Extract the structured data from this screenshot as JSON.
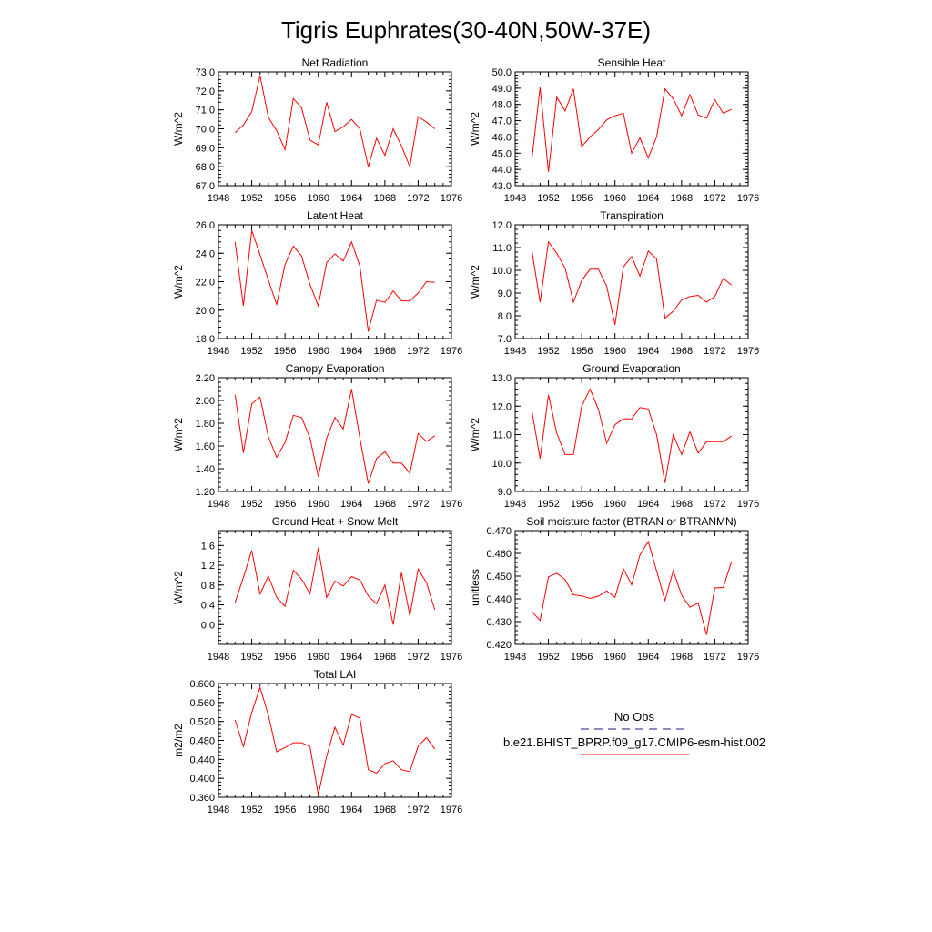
{
  "figure": {
    "title": "Tigris Euphrates(30-40N,50W-37E)",
    "line_color": "#ff0000",
    "obs_color": "#1a1a80"
  },
  "legend": {
    "obs_label": "No Obs",
    "model_label": "b.e21.BHIST_BPRP.f09_g17.CMIP6-esm-hist.002"
  },
  "chart_data": [
    {
      "type": "line",
      "title": "Net Radiation",
      "ylabel": "W/m^2",
      "xlim": [
        1948,
        1976
      ],
      "xticks": [
        1948,
        1952,
        1956,
        1960,
        1964,
        1968,
        1972,
        1976
      ],
      "ylim": [
        67.0,
        73.0
      ],
      "yticks": [
        67.0,
        68.0,
        69.0,
        70.0,
        71.0,
        72.0,
        73.0
      ],
      "ytick_labels": [
        "67.0",
        "68.0",
        "69.0",
        "70.0",
        "71.0",
        "72.0",
        "73.0"
      ],
      "series": [
        {
          "x": [
            1950,
            1951,
            1952,
            1953,
            1954,
            1955,
            1956,
            1957,
            1958,
            1959,
            1960,
            1961,
            1962,
            1963,
            1964,
            1965,
            1966,
            1967,
            1968,
            1969,
            1970,
            1971,
            1972,
            1973,
            1974
          ],
          "values": [
            69.8,
            70.2,
            70.9,
            72.8,
            70.6,
            69.9,
            68.9,
            71.6,
            71.1,
            69.4,
            69.15,
            71.4,
            69.85,
            70.1,
            70.5,
            70.0,
            68.0,
            69.5,
            68.6,
            70.0,
            69.1,
            68.0,
            70.65,
            70.35,
            70.0
          ]
        }
      ]
    },
    {
      "type": "line",
      "title": "Sensible Heat",
      "ylabel": "W/m^2",
      "xlim": [
        1948,
        1976
      ],
      "xticks": [
        1948,
        1952,
        1956,
        1960,
        1964,
        1968,
        1972,
        1976
      ],
      "ylim": [
        43.0,
        50.0
      ],
      "yticks": [
        43.0,
        44.0,
        45.0,
        46.0,
        47.0,
        48.0,
        49.0,
        50.0
      ],
      "ytick_labels": [
        "43.0",
        "44.0",
        "45.0",
        "46.0",
        "47.0",
        "48.0",
        "49.0",
        "50.0"
      ],
      "series": [
        {
          "x": [
            1950,
            1951,
            1952,
            1953,
            1954,
            1955,
            1956,
            1957,
            1958,
            1959,
            1960,
            1961,
            1962,
            1963,
            1964,
            1965,
            1966,
            1967,
            1968,
            1969,
            1970,
            1971,
            1972,
            1973,
            1974
          ],
          "values": [
            44.6,
            49.05,
            43.85,
            48.45,
            47.6,
            48.95,
            45.4,
            46.0,
            46.45,
            47.05,
            47.3,
            47.45,
            45.0,
            45.95,
            44.7,
            46.0,
            48.95,
            48.35,
            47.3,
            48.6,
            47.35,
            47.15,
            48.3,
            47.45,
            47.7
          ]
        }
      ]
    },
    {
      "type": "line",
      "title": "Latent Heat",
      "ylabel": "W/m^2",
      "xlim": [
        1948,
        1976
      ],
      "xticks": [
        1948,
        1952,
        1956,
        1960,
        1964,
        1968,
        1972,
        1976
      ],
      "ylim": [
        18.0,
        26.0
      ],
      "yticks": [
        18.0,
        20.0,
        22.0,
        24.0,
        26.0
      ],
      "ytick_labels": [
        "18.0",
        "20.0",
        "22.0",
        "24.0",
        "26.0"
      ],
      "series": [
        {
          "x": [
            1950,
            1951,
            1952,
            1953,
            1954,
            1955,
            1956,
            1957,
            1958,
            1959,
            1960,
            1961,
            1962,
            1963,
            1964,
            1965,
            1966,
            1967,
            1968,
            1969,
            1970,
            1971,
            1972,
            1973,
            1974
          ],
          "values": [
            24.8,
            20.3,
            25.6,
            23.9,
            22.1,
            20.4,
            23.2,
            24.5,
            23.8,
            21.8,
            20.3,
            23.35,
            23.95,
            23.45,
            24.8,
            23.1,
            18.5,
            20.7,
            20.55,
            21.35,
            20.65,
            20.65,
            21.2,
            22.0,
            21.95
          ]
        }
      ]
    },
    {
      "type": "line",
      "title": "Transpiration",
      "ylabel": "W/m^2",
      "xlim": [
        1948,
        1976
      ],
      "xticks": [
        1948,
        1952,
        1956,
        1960,
        1964,
        1968,
        1972,
        1976
      ],
      "ylim": [
        7.0,
        12.0
      ],
      "yticks": [
        7.0,
        8.0,
        9.0,
        10.0,
        11.0,
        12.0
      ],
      "ytick_labels": [
        "7.0",
        "8.0",
        "9.0",
        "10.0",
        "11.0",
        "12.0"
      ],
      "series": [
        {
          "x": [
            1950,
            1951,
            1952,
            1953,
            1954,
            1955,
            1956,
            1957,
            1958,
            1959,
            1960,
            1961,
            1962,
            1963,
            1964,
            1965,
            1966,
            1967,
            1968,
            1969,
            1970,
            1971,
            1972,
            1973,
            1974
          ],
          "values": [
            10.9,
            8.6,
            11.25,
            10.75,
            10.1,
            8.6,
            9.55,
            10.05,
            10.05,
            9.3,
            7.6,
            10.15,
            10.6,
            9.75,
            10.85,
            10.5,
            7.9,
            8.2,
            8.7,
            8.85,
            8.9,
            8.6,
            8.85,
            9.65,
            9.35
          ]
        }
      ]
    },
    {
      "type": "line",
      "title": "Canopy Evaporation",
      "ylabel": "W/m^2",
      "xlim": [
        1948,
        1976
      ],
      "xticks": [
        1948,
        1952,
        1956,
        1960,
        1964,
        1968,
        1972,
        1976
      ],
      "ylim": [
        1.2,
        2.2
      ],
      "yticks": [
        1.2,
        1.4,
        1.6,
        1.8,
        2.0,
        2.2
      ],
      "ytick_labels": [
        "1.20",
        "1.40",
        "1.60",
        "1.80",
        "2.00",
        "2.20"
      ],
      "series": [
        {
          "x": [
            1950,
            1951,
            1952,
            1953,
            1954,
            1955,
            1956,
            1957,
            1958,
            1959,
            1960,
            1961,
            1962,
            1963,
            1964,
            1965,
            1966,
            1967,
            1968,
            1969,
            1970,
            1971,
            1972,
            1973,
            1974
          ],
          "values": [
            2.05,
            1.54,
            1.97,
            2.03,
            1.68,
            1.5,
            1.63,
            1.87,
            1.85,
            1.67,
            1.33,
            1.67,
            1.85,
            1.75,
            2.1,
            1.67,
            1.27,
            1.49,
            1.55,
            1.45,
            1.45,
            1.36,
            1.71,
            1.64,
            1.69
          ]
        }
      ]
    },
    {
      "type": "line",
      "title": "Ground Evaporation",
      "ylabel": "W/m^2",
      "xlim": [
        1948,
        1976
      ],
      "xticks": [
        1948,
        1952,
        1956,
        1960,
        1964,
        1968,
        1972,
        1976
      ],
      "ylim": [
        9.0,
        13.0
      ],
      "yticks": [
        9.0,
        10.0,
        11.0,
        12.0,
        13.0
      ],
      "ytick_labels": [
        "9.0",
        "10.0",
        "11.0",
        "12.0",
        "13.0"
      ],
      "series": [
        {
          "x": [
            1950,
            1951,
            1952,
            1953,
            1954,
            1955,
            1956,
            1957,
            1958,
            1959,
            1960,
            1961,
            1962,
            1963,
            1964,
            1965,
            1966,
            1967,
            1968,
            1969,
            1970,
            1971,
            1972,
            1973,
            1974
          ],
          "values": [
            11.85,
            10.15,
            12.4,
            11.05,
            10.3,
            10.3,
            12.0,
            12.6,
            11.9,
            10.7,
            11.35,
            11.55,
            11.55,
            11.95,
            11.9,
            11.0,
            9.3,
            11.0,
            10.3,
            11.1,
            10.35,
            10.75,
            10.75,
            10.75,
            10.95
          ]
        }
      ]
    },
    {
      "type": "line",
      "title": "Ground Heat + Snow Melt",
      "ylabel": "W/m^2",
      "xlim": [
        1948,
        1976
      ],
      "xticks": [
        1948,
        1952,
        1956,
        1960,
        1964,
        1968,
        1972,
        1976
      ],
      "ylim": [
        -0.4,
        1.9
      ],
      "yticks": [
        0.0,
        0.4,
        0.8,
        1.2,
        1.6
      ],
      "ytick_labels": [
        "0.0",
        "0.4",
        "0.8",
        "1.2",
        "1.6"
      ],
      "series": [
        {
          "x": [
            1950,
            1951,
            1952,
            1953,
            1954,
            1955,
            1956,
            1957,
            1958,
            1959,
            1960,
            1961,
            1962,
            1963,
            1964,
            1965,
            1966,
            1967,
            1968,
            1969,
            1970,
            1971,
            1972,
            1973,
            1974
          ],
          "values": [
            0.45,
            0.95,
            1.5,
            0.62,
            0.98,
            0.55,
            0.37,
            1.1,
            0.92,
            0.62,
            1.55,
            0.55,
            0.88,
            0.78,
            0.97,
            0.9,
            0.58,
            0.42,
            0.8,
            0.0,
            1.05,
            0.18,
            1.12,
            0.85,
            0.3
          ]
        }
      ]
    },
    {
      "type": "line",
      "title": "Soil moisture factor (BTRAN or BTRANMN)",
      "ylabel": "unitless",
      "xlim": [
        1948,
        1976
      ],
      "xticks": [
        1948,
        1952,
        1956,
        1960,
        1964,
        1968,
        1972,
        1976
      ],
      "ylim": [
        0.42,
        0.47
      ],
      "yticks": [
        0.42,
        0.43,
        0.44,
        0.45,
        0.46,
        0.47
      ],
      "ytick_labels": [
        "0.420",
        "0.430",
        "0.440",
        "0.450",
        "0.460",
        "0.470"
      ],
      "series": [
        {
          "x": [
            1950,
            1951,
            1952,
            1953,
            1954,
            1955,
            1956,
            1957,
            1958,
            1959,
            1960,
            1961,
            1962,
            1963,
            1964,
            1965,
            1966,
            1967,
            1968,
            1969,
            1970,
            1971,
            1972,
            1973,
            1974
          ],
          "values": [
            0.4345,
            0.4305,
            0.4497,
            0.4513,
            0.4485,
            0.4418,
            0.4413,
            0.4402,
            0.4412,
            0.4435,
            0.4407,
            0.4533,
            0.4462,
            0.4593,
            0.4652,
            0.4523,
            0.4393,
            0.4524,
            0.4417,
            0.4363,
            0.4382,
            0.4242,
            0.4448,
            0.445,
            0.4563
          ]
        }
      ]
    },
    {
      "type": "line",
      "title": "Total LAI",
      "ylabel": "m2/m2",
      "xlim": [
        1948,
        1976
      ],
      "xticks": [
        1948,
        1952,
        1956,
        1960,
        1964,
        1968,
        1972,
        1976
      ],
      "ylim": [
        0.36,
        0.6
      ],
      "yticks": [
        0.36,
        0.4,
        0.44,
        0.48,
        0.52,
        0.56,
        0.6
      ],
      "ytick_labels": [
        "0.360",
        "0.400",
        "0.440",
        "0.480",
        "0.520",
        "0.560",
        "0.600"
      ],
      "series": [
        {
          "x": [
            1950,
            1951,
            1952,
            1953,
            1954,
            1955,
            1956,
            1957,
            1958,
            1959,
            1960,
            1961,
            1962,
            1963,
            1964,
            1965,
            1966,
            1967,
            1968,
            1969,
            1970,
            1971,
            1972,
            1973,
            1974
          ],
          "values": [
            0.523,
            0.467,
            0.539,
            0.592,
            0.533,
            0.456,
            0.465,
            0.475,
            0.475,
            0.467,
            0.365,
            0.447,
            0.508,
            0.47,
            0.535,
            0.527,
            0.418,
            0.411,
            0.431,
            0.437,
            0.418,
            0.414,
            0.468,
            0.486,
            0.462
          ]
        }
      ]
    }
  ]
}
